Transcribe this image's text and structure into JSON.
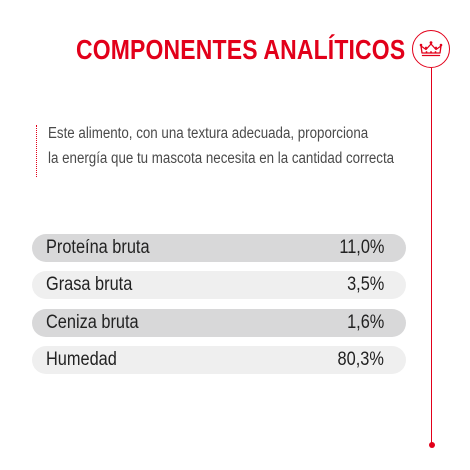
{
  "header": {
    "title": "COMPONENTES ANALÍTICOS",
    "logo_icon": "crown-icon",
    "accent_color": "#e2001a"
  },
  "description": {
    "line1": "Este alimento, con una textura adecuada, proporciona",
    "line2": "la energía que tu mascota necesita en la cantidad correcta"
  },
  "components": [
    {
      "label": "Proteína bruta",
      "value": "11,0%"
    },
    {
      "label": "Grasa bruta",
      "value": "3,5%"
    },
    {
      "label": "Ceniza bruta",
      "value": "1,6%"
    },
    {
      "label": "Humedad",
      "value": "80,3%"
    }
  ]
}
